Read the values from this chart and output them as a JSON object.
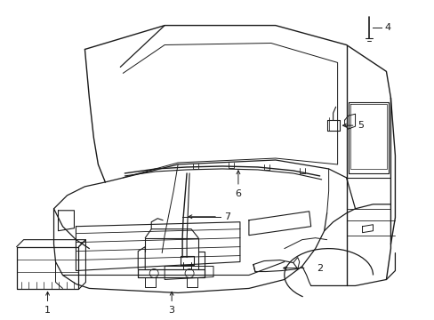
{
  "background_color": "#ffffff",
  "line_color": "#1a1a1a",
  "figsize": [
    4.89,
    3.6
  ],
  "dpi": 100,
  "lw": 0.75
}
